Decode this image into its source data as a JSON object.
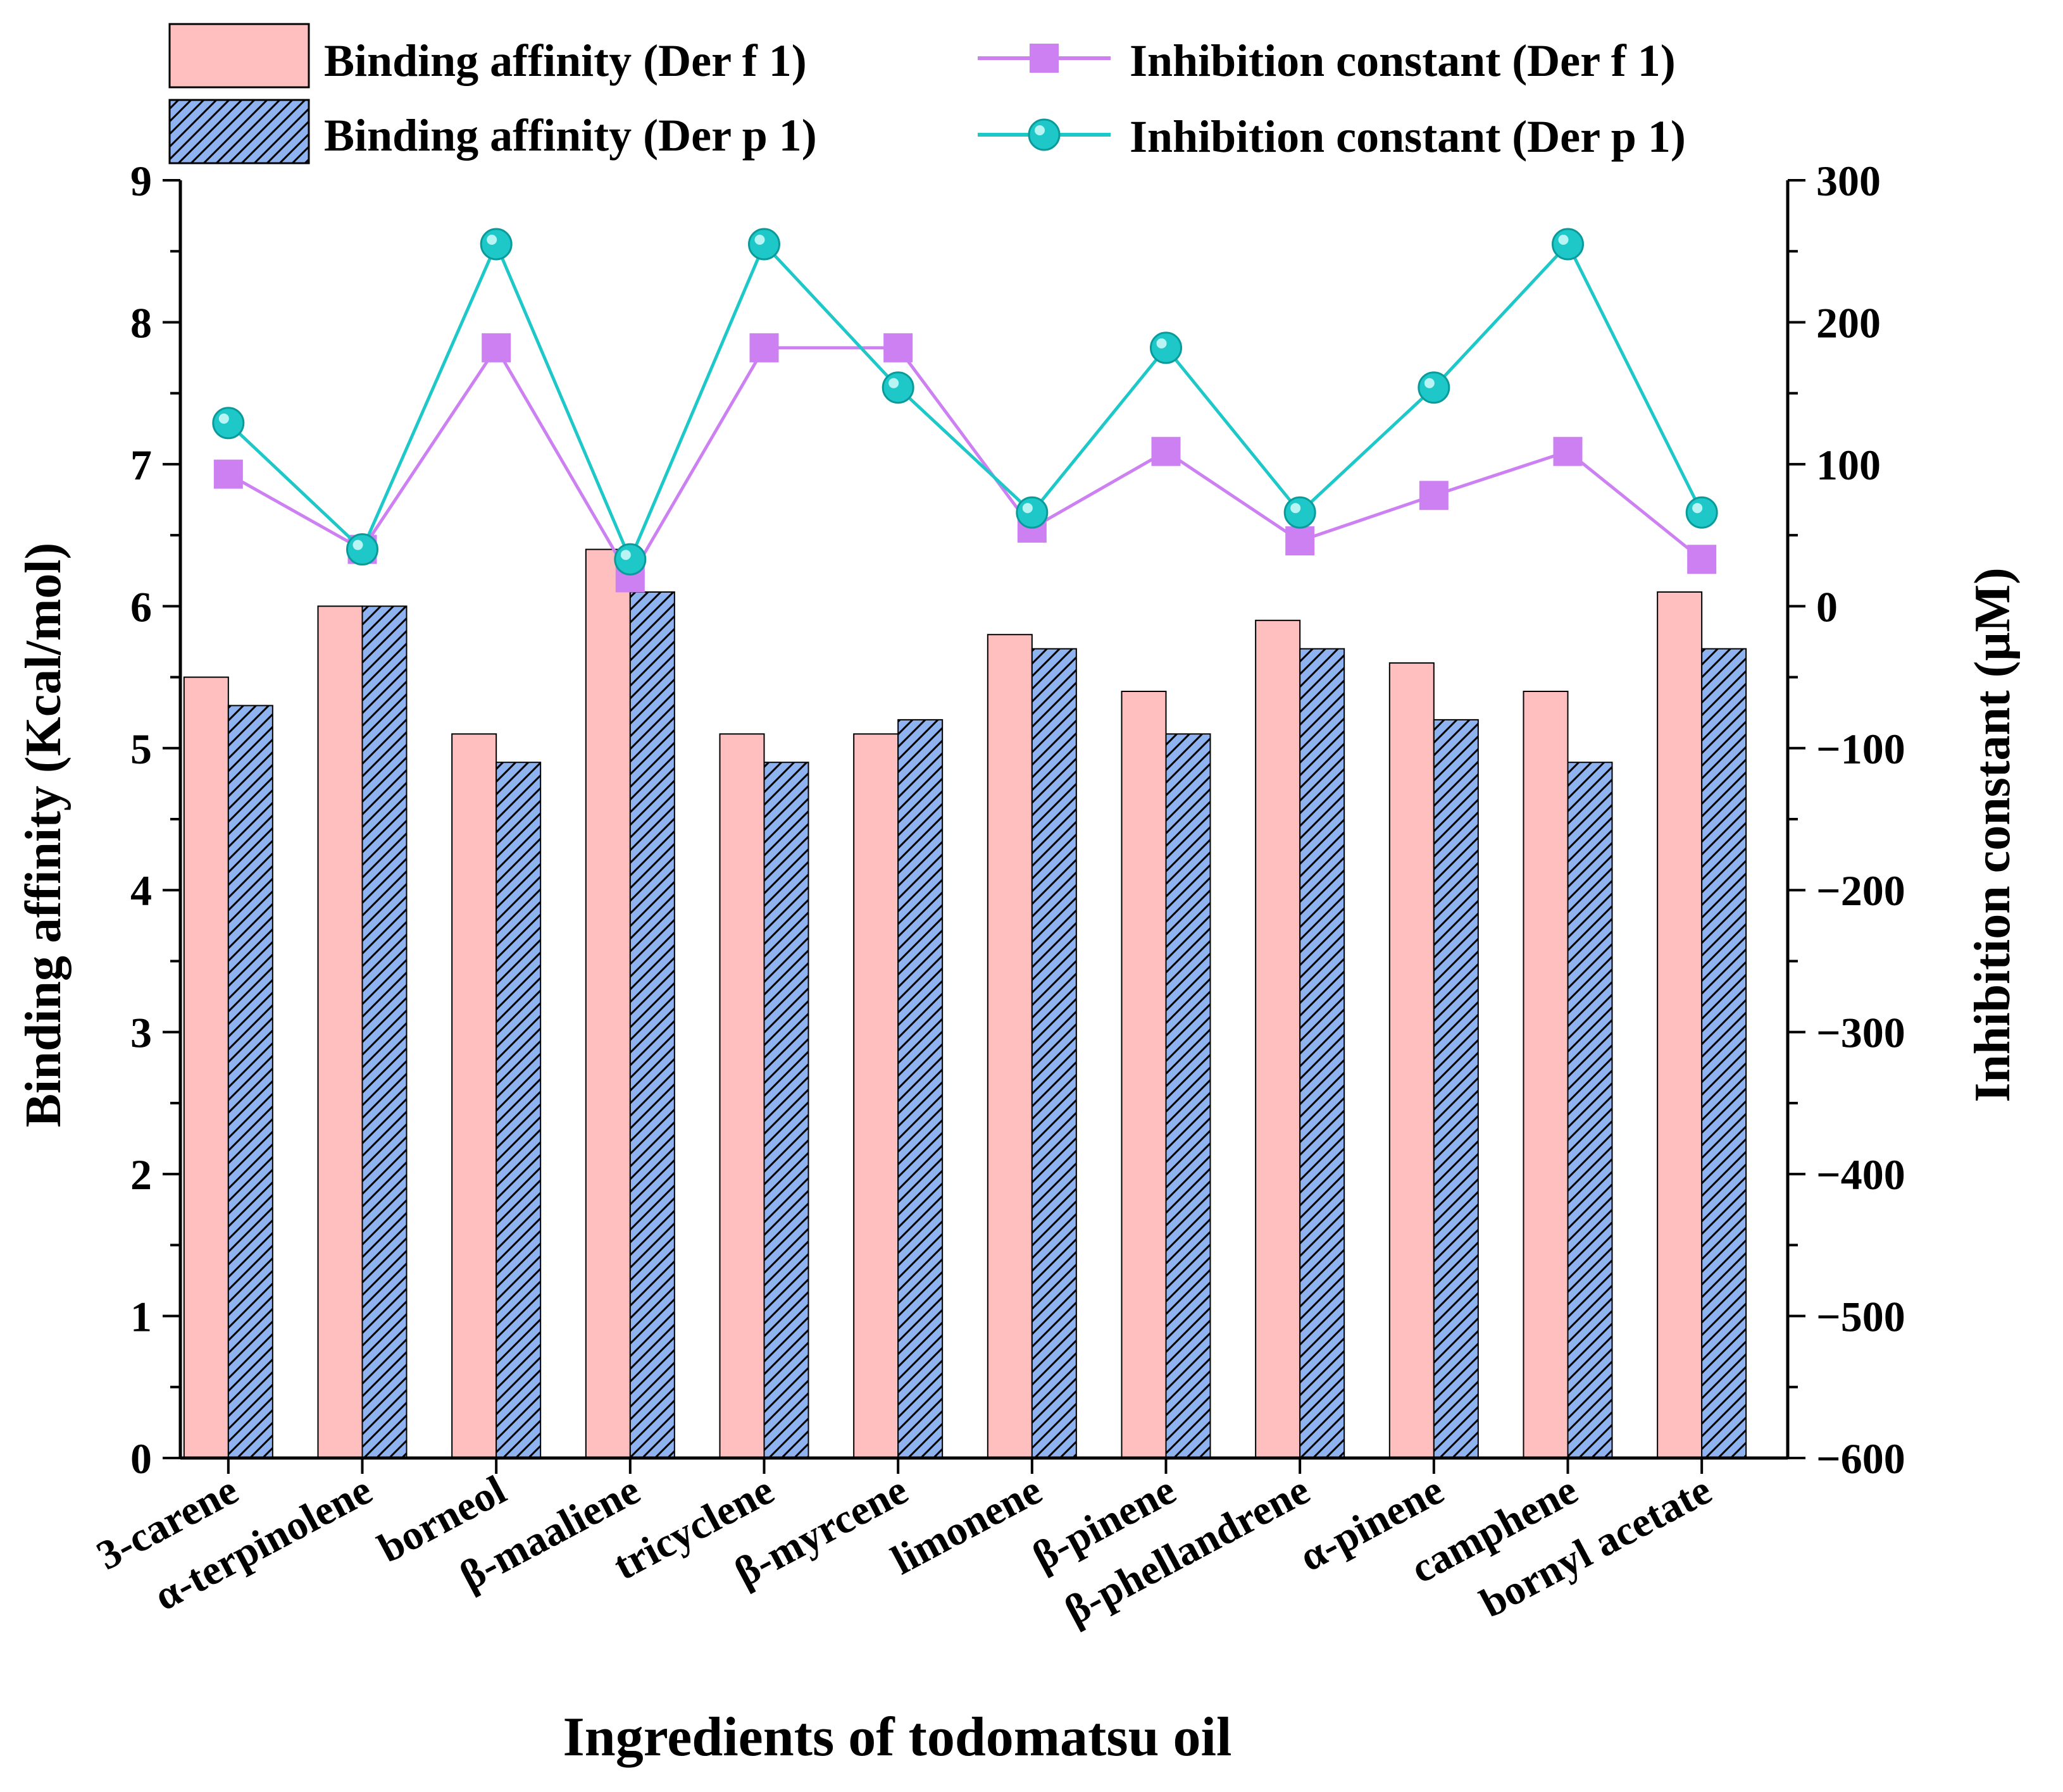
{
  "chart_data": {
    "type": "bar",
    "title": "",
    "xlabel": "Ingredients of todomatsu oil",
    "ylabel": "Binding affinity (Kcal/mol)",
    "y2label": "Inhibition constant (μM)",
    "ylim": [
      0,
      9
    ],
    "y2lim": [
      -600,
      300
    ],
    "yticks": [
      "0",
      "1",
      "2",
      "3",
      "4",
      "5",
      "6",
      "7",
      "8",
      "9"
    ],
    "y2ticks": [
      "−600",
      "−500",
      "−400",
      "−300",
      "−200",
      "−100",
      "0",
      "100",
      "200",
      "300"
    ],
    "categories": [
      "3-carene",
      "α-terpinolene",
      "borneol",
      "β-maaliene",
      "tricyclene",
      "β-myrcene",
      "limonene",
      "β-pinene",
      "β-phellandrene",
      "α-pinene",
      "camphene",
      "bornyl acetate"
    ],
    "grid": false,
    "legend_position": "top",
    "series": [
      {
        "name": "Binding affinity (Der f 1)",
        "type": "bar",
        "axis": "left",
        "color": "#ffbfbf",
        "pattern": "solid",
        "values": [
          5.5,
          6.0,
          5.1,
          6.4,
          5.1,
          5.1,
          5.8,
          5.4,
          5.9,
          5.6,
          5.4,
          6.1
        ]
      },
      {
        "name": "Binding affinity (Der p 1)",
        "type": "bar",
        "axis": "left",
        "color": "#8fb3ee",
        "pattern": "hatched",
        "values": [
          5.3,
          6.0,
          4.9,
          6.1,
          4.9,
          5.2,
          5.7,
          5.1,
          5.7,
          5.2,
          4.9,
          5.7
        ]
      },
      {
        "name": "Inhibition constant (Der f 1)",
        "type": "line",
        "axis": "right",
        "color": "#cc80f2",
        "marker": "square",
        "values": [
          93,
          40,
          182,
          20,
          182,
          182,
          55,
          109,
          46,
          78,
          109,
          33
        ]
      },
      {
        "name": "Inhibition constant (Der p 1)",
        "type": "line",
        "axis": "right",
        "color": "#1ec8c8",
        "marker": "circle",
        "values": [
          129,
          40,
          255,
          33,
          255,
          154,
          66,
          182,
          66,
          154,
          255,
          66
        ]
      }
    ]
  }
}
